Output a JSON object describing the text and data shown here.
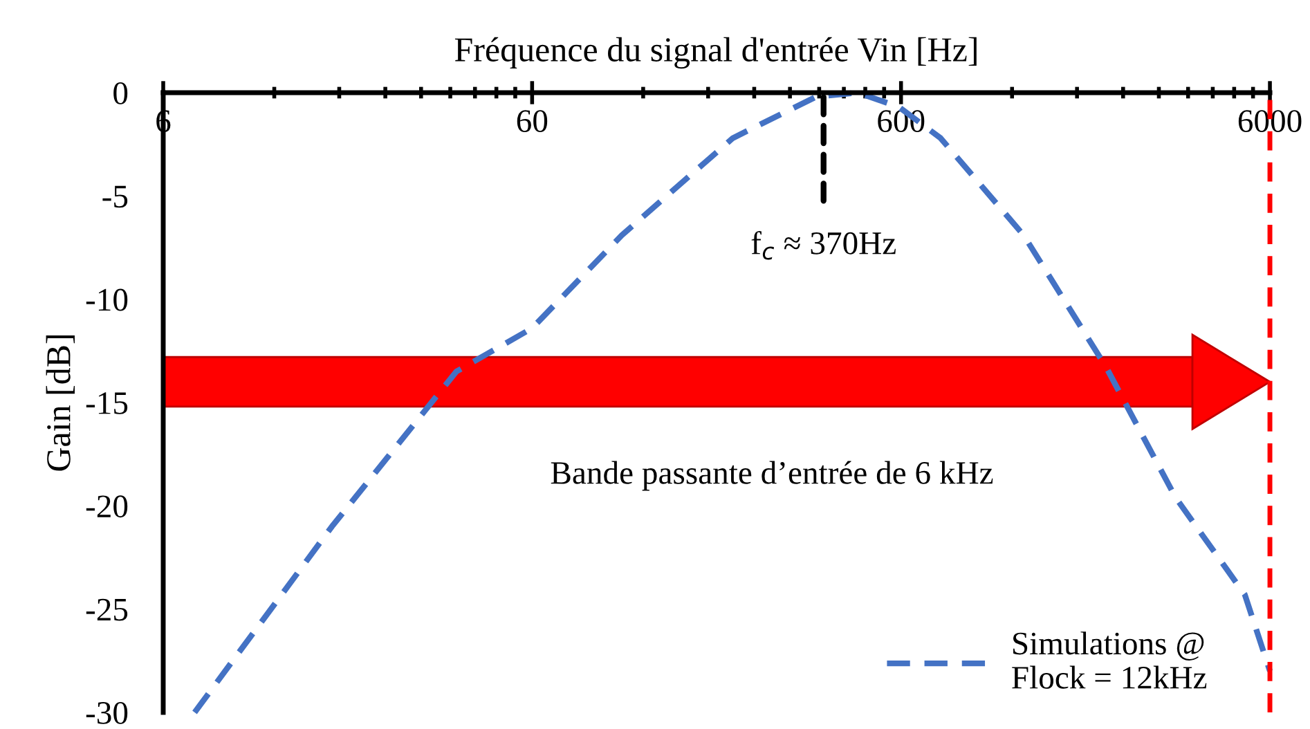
{
  "chart_data": {
    "type": "line",
    "xlabel": "Fréquence du signal d'entrée Vin [Hz]",
    "ylabel": "Gain [dB]",
    "log": "x",
    "xlim": [
      6,
      6000
    ],
    "xticks": [
      6,
      60,
      600,
      6000
    ],
    "ylim": [
      -30,
      0
    ],
    "yticks": [
      -30,
      -25,
      -20,
      -15,
      -10,
      -5,
      0
    ],
    "grid": false,
    "legend": "bottom right",
    "line_style": "dashed",
    "marker": "none",
    "series": [
      {
        "name": "Simulations @\nFlock = 12kHz",
        "color": "#4472c4",
        "x": [
          7.3,
          17.2,
          37.4,
          60,
          105,
          210,
          353,
          458,
          593,
          768,
          1290,
          2160,
          3330,
          5130,
          6000
        ],
        "values": [
          -30,
          -21,
          -13.5,
          -11.4,
          -6.9,
          -2.2,
          -0.2,
          0,
          -0.7,
          -2.2,
          -6.9,
          -13.3,
          -19.6,
          -24.3,
          -28
        ]
      }
    ],
    "ref_lines": [
      {
        "axis": "x",
        "value": 6000,
        "color": "#ff0000",
        "line_style": "dashed"
      }
    ],
    "bands": [
      {
        "axis": "y",
        "from": -15.2,
        "to": -12.8,
        "color": "#ff0000",
        "label": "Bande passante d’entrée de 6 kHz"
      }
    ],
    "annotations": [
      {
        "text": "f$_{c}$ ≈ 370Hz",
        "x": 370,
        "y": 0
      }
    ]
  }
}
